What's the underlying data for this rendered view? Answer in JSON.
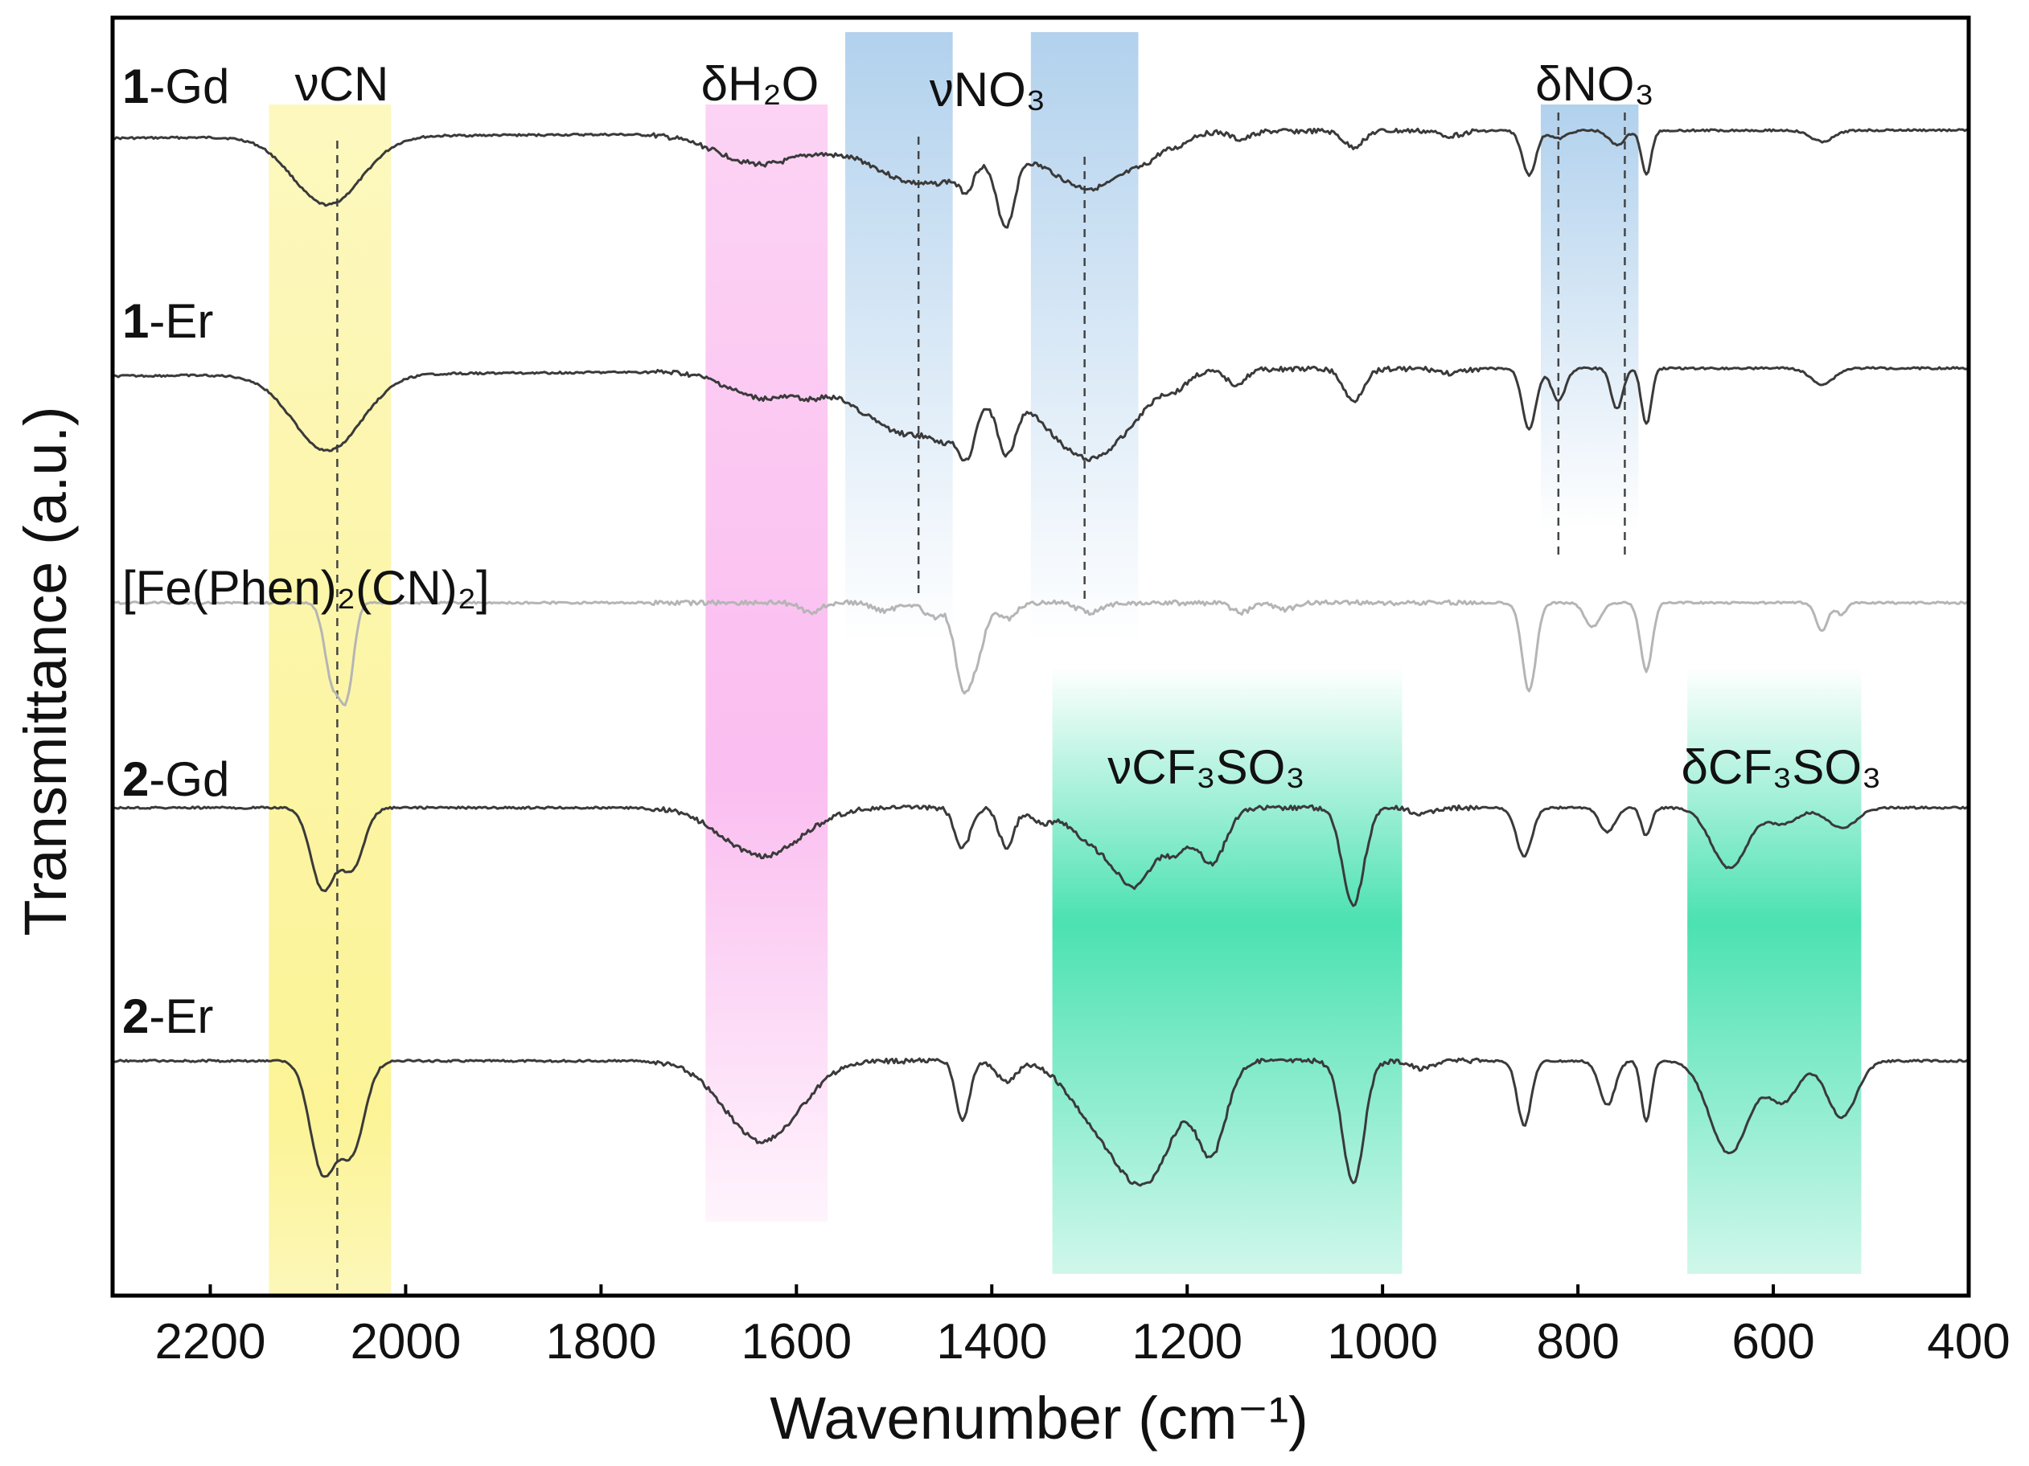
{
  "chart_data": {
    "type": "line",
    "title": "",
    "xlabel": "Wavenumber (cm⁻¹)",
    "ylabel": "Transmittance (a.u.)",
    "xlim": [
      2300,
      400
    ],
    "x_ticks": [
      2200,
      2000,
      1800,
      1600,
      1400,
      1200,
      1000,
      800,
      600,
      400
    ],
    "grid": false,
    "series": [
      {
        "prefix": "1",
        "name": "-Gd",
        "color": "#3a3a3a",
        "baseline": 0,
        "edge_left": 10,
        "edge_right": 0,
        "peaks": [
          [
            2080,
            85,
            35
          ],
          [
            1635,
            38,
            45
          ],
          [
            1560,
            6,
            18
          ],
          [
            1480,
            60,
            45
          ],
          [
            1440,
            15,
            20
          ],
          [
            1425,
            32,
            8
          ],
          [
            1400,
            18,
            8
          ],
          [
            1385,
            95,
            9
          ],
          [
            1360,
            6,
            10
          ],
          [
            1300,
            70,
            45
          ],
          [
            1240,
            10,
            12
          ],
          [
            1210,
            10,
            10
          ],
          [
            1145,
            10,
            10
          ],
          [
            1030,
            20,
            10
          ],
          [
            930,
            6,
            12
          ],
          [
            850,
            55,
            7
          ],
          [
            820,
            10,
            8
          ],
          [
            760,
            18,
            8
          ],
          [
            730,
            55,
            5
          ],
          [
            550,
            14,
            12
          ]
        ]
      },
      {
        "prefix": "1",
        "name": "-Er",
        "color": "#3a3a3a",
        "baseline": 0,
        "edge_left": 10,
        "edge_right": 0,
        "peaks": [
          [
            2080,
            95,
            35
          ],
          [
            1635,
            32,
            35
          ],
          [
            1585,
            10,
            15
          ],
          [
            1480,
            80,
            55
          ],
          [
            1445,
            22,
            12
          ],
          [
            1425,
            55,
            8
          ],
          [
            1385,
            70,
            9
          ],
          [
            1300,
            110,
            45
          ],
          [
            1210,
            12,
            10
          ],
          [
            1150,
            18,
            10
          ],
          [
            1030,
            40,
            10
          ],
          [
            930,
            6,
            12
          ],
          [
            850,
            75,
            7
          ],
          [
            820,
            40,
            7
          ],
          [
            760,
            50,
            6
          ],
          [
            730,
            70,
            5
          ],
          [
            550,
            20,
            12
          ]
        ]
      },
      {
        "prefix": "",
        "name": "[Fe(Phen)₂(CN)₂]",
        "color": "#b5b5b5",
        "baseline": 0,
        "edge_left": 0,
        "edge_right": 0,
        "peaks": [
          [
            2075,
            95,
            8
          ],
          [
            2060,
            105,
            7
          ],
          [
            1585,
            12,
            10
          ],
          [
            1510,
            10,
            12
          ],
          [
            1460,
            18,
            10
          ],
          [
            1430,
            100,
            8
          ],
          [
            1415,
            60,
            8
          ],
          [
            1385,
            20,
            10
          ],
          [
            1300,
            12,
            12
          ],
          [
            1145,
            12,
            10
          ],
          [
            1100,
            8,
            10
          ],
          [
            850,
            110,
            7
          ],
          [
            785,
            30,
            8
          ],
          [
            730,
            85,
            6
          ],
          [
            550,
            35,
            6
          ],
          [
            530,
            15,
            5
          ]
        ]
      },
      {
        "prefix": "2",
        "name": "-Gd",
        "color": "#3a3a3a",
        "baseline": 0,
        "edge_left": 0,
        "edge_right": 0,
        "peaks": [
          [
            2085,
            100,
            12
          ],
          [
            2055,
            75,
            12
          ],
          [
            1635,
            60,
            40
          ],
          [
            1430,
            50,
            8
          ],
          [
            1385,
            48,
            8
          ],
          [
            1350,
            15,
            10
          ],
          [
            1290,
            45,
            28
          ],
          [
            1250,
            80,
            20
          ],
          [
            1210,
            45,
            12
          ],
          [
            1175,
            70,
            14
          ],
          [
            1030,
            120,
            11
          ],
          [
            960,
            8,
            10
          ],
          [
            855,
            60,
            8
          ],
          [
            770,
            30,
            8
          ],
          [
            730,
            35,
            5
          ],
          [
            645,
            75,
            18
          ],
          [
            590,
            20,
            15
          ],
          [
            530,
            25,
            15
          ]
        ]
      },
      {
        "prefix": "2",
        "name": "-Er",
        "color": "#3a3a3a",
        "baseline": 0,
        "edge_left": 0,
        "edge_right": 0,
        "peaks": [
          [
            2085,
            135,
            13
          ],
          [
            2055,
            110,
            13
          ],
          [
            1635,
            100,
            38
          ],
          [
            1430,
            75,
            7
          ],
          [
            1385,
            25,
            10
          ],
          [
            1290,
            70,
            30
          ],
          [
            1240,
            135,
            28
          ],
          [
            1175,
            110,
            15
          ],
          [
            1030,
            150,
            11
          ],
          [
            960,
            10,
            10
          ],
          [
            855,
            80,
            7
          ],
          [
            770,
            55,
            8
          ],
          [
            730,
            75,
            5
          ],
          [
            645,
            115,
            20
          ],
          [
            590,
            50,
            15
          ],
          [
            530,
            70,
            15
          ]
        ]
      }
    ],
    "bands": [
      {
        "label": "νCN",
        "x_range": [
          2140,
          2015
        ],
        "color": "#fbf28a",
        "fade": "solid"
      },
      {
        "label": "δH₂O",
        "x_range": [
          1693,
          1568
        ],
        "color": "#fab6ee",
        "fade": "solid"
      },
      {
        "label": "νNO₃",
        "x_range": [
          1550,
          1440
        ],
        "color": "#a9cceb",
        "fade": "down"
      },
      {
        "label": "",
        "x_range": [
          1360,
          1250
        ],
        "color": "#a9cceb",
        "fade": "down"
      },
      {
        "label": "δNO₃",
        "x_range": [
          838,
          738
        ],
        "color": "#a9cceb",
        "fade": "down"
      },
      {
        "label": "νCF₃SO₃",
        "x_range": [
          1338,
          980
        ],
        "color": "#42e0ae",
        "fade": "peak"
      },
      {
        "label": "δCF₃SO₃",
        "x_range": [
          688,
          510
        ],
        "color": "#42e0ae",
        "fade": "peak"
      }
    ],
    "dashed_markers": [
      2070,
      1475,
      1305,
      820,
      752
    ]
  }
}
